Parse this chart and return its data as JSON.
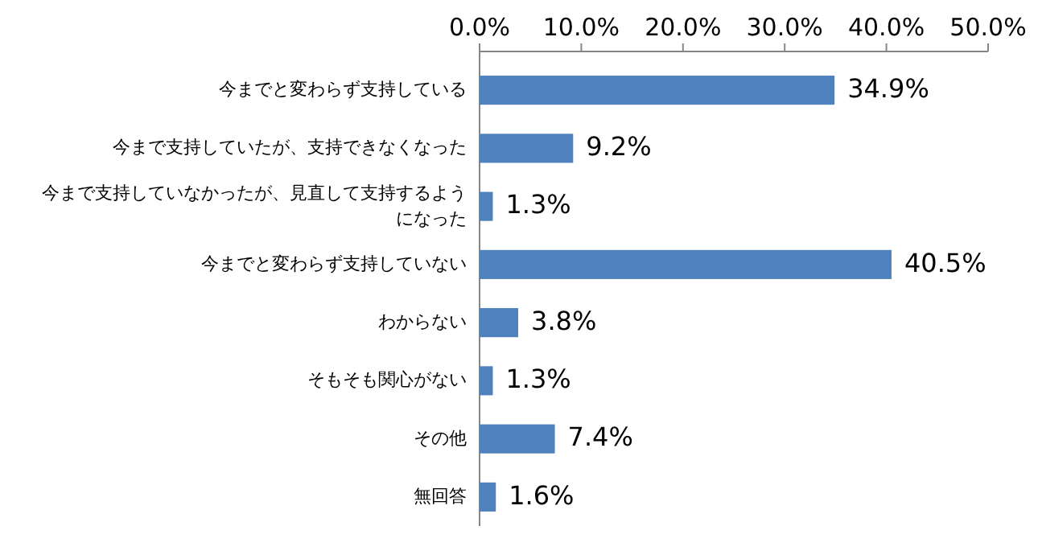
{
  "chart_data": {
    "type": "bar",
    "orientation": "horizontal",
    "categories": [
      "今までと変わらず支持している",
      "今まで支持していたが、支持できなくなった",
      "今まで支持していなかったが、見直して支持するようになった",
      "今までと変わらず支持していない",
      "わからない",
      "そもそも関心がない",
      "その他",
      "無回答"
    ],
    "values": [
      34.9,
      9.2,
      1.3,
      40.5,
      3.8,
      1.3,
      7.4,
      1.6
    ],
    "value_labels": [
      "34.9%",
      "9.2%",
      "1.3%",
      "40.5%",
      "3.8%",
      "1.3%",
      "7.4%",
      "1.6%"
    ],
    "color": "#4f81bd",
    "xlim": [
      0,
      50
    ],
    "xticks": [
      {
        "value": 0,
        "label": "0.0%"
      },
      {
        "value": 10,
        "label": "10.0%"
      },
      {
        "value": 20,
        "label": "20.0%"
      },
      {
        "value": 30,
        "label": "30.0%"
      },
      {
        "value": 40,
        "label": "40.0%"
      },
      {
        "value": 50,
        "label": "50.0%"
      }
    ],
    "grid": false
  }
}
